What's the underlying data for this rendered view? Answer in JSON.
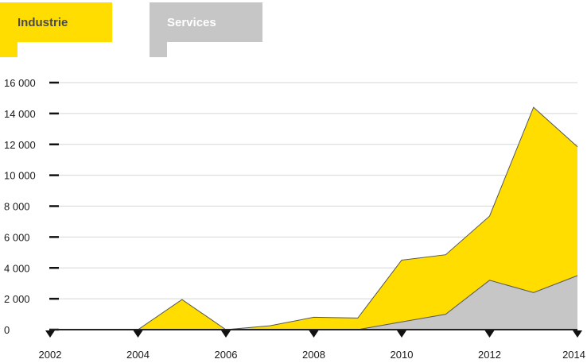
{
  "tabs": [
    {
      "label": "Industrie",
      "color": "#FFDD00",
      "text_color": "#4A4A4A",
      "active": true
    },
    {
      "label": "Services",
      "color": "#C6C6C6",
      "text_color": "#FFFFFF",
      "active": false
    }
  ],
  "chart_data": {
    "type": "area",
    "stacked": true,
    "x": [
      2002,
      2003,
      2004,
      2005,
      2006,
      2007,
      2008,
      2009,
      2010,
      2011,
      2012,
      2013,
      2014
    ],
    "series": [
      {
        "name": "Services",
        "color": "#C6C6C6",
        "values": [
          0,
          0,
          0,
          0,
          0,
          0,
          0,
          0,
          500,
          1000,
          3200,
          2400,
          3500
        ]
      },
      {
        "name": "Industrie",
        "color": "#FFDD00",
        "values": [
          0,
          0,
          0,
          1950,
          0,
          250,
          800,
          750,
          4000,
          3850,
          4150,
          12000,
          8350
        ]
      }
    ],
    "xticks": [
      "2002",
      "2004",
      "2006",
      "2008",
      "2010",
      "2012",
      "2014"
    ],
    "yticks": [
      "0",
      "2 000",
      "4 000",
      "6 000",
      "8 000",
      "10 000",
      "12 000",
      "14 000",
      "16 000"
    ],
    "ylim": [
      0,
      16000
    ],
    "xlim": [
      2002,
      2014
    ],
    "grid": true
  }
}
